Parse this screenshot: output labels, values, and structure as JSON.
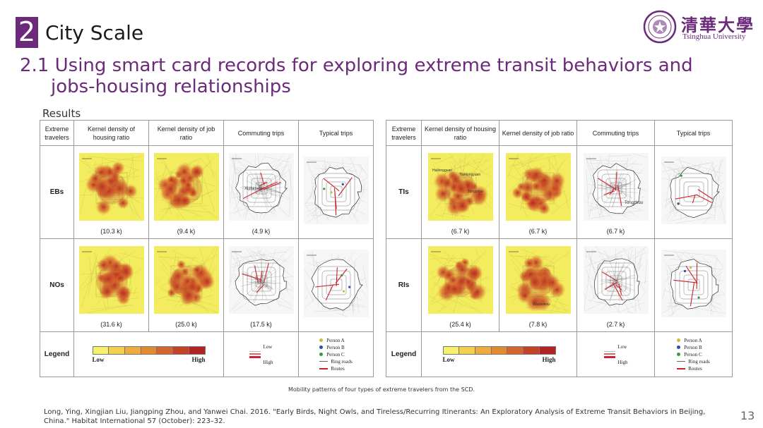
{
  "header": {
    "section_number": "2",
    "section_title": "City Scale",
    "subtitle_line1": "2.1 Using smart card records for exploring extreme transit behaviors and",
    "subtitle_line2": "jobs-housing relationships"
  },
  "logo": {
    "chinese_name": "清華大學",
    "english_name": "Tsinghua University",
    "accent_color": "#6b2b7a"
  },
  "results_label": "Results",
  "table_headers": [
    "Extreme travelers",
    "Kernel density of housing ratio",
    "Kernel density of job ratio",
    "Commuting trips",
    "Typical trips"
  ],
  "left_table": {
    "rows": [
      {
        "label": "EBs",
        "counts": [
          "(10.3 k)",
          "(9.4 k)",
          "(4.9 k)"
        ],
        "place_label": "Xizhimen"
      },
      {
        "label": "NOs",
        "counts": [
          "(31.6 k)",
          "(25.0 k)",
          "(17.5 k)"
        ],
        "place_label": ""
      }
    ]
  },
  "right_table": {
    "rows": [
      {
        "label": "TIs",
        "counts": [
          "(6.7 k)",
          "(6.7 k)",
          "(6.7 k)"
        ],
        "place_labels": [
          "Huilongguan",
          "Tiantongyuan",
          "Tongzhou"
        ],
        "place_label": "Tongzhou"
      },
      {
        "label": "RIs",
        "counts": [
          "(25.4 k)",
          "(7.8 k)",
          "(2.7 k)"
        ],
        "place_label": "Wudaokou"
      }
    ]
  },
  "legend": {
    "row_label": "Legend",
    "gradient_low": "Low",
    "gradient_high": "High",
    "gradient_colors": [
      "#f5ef6a",
      "#f3d04e",
      "#ecac3e",
      "#e08a34",
      "#d4652c",
      "#c44326",
      "#b32222"
    ],
    "line_low": "Low",
    "line_high": "High",
    "person_a": "Person A",
    "person_b": "Person B",
    "person_c": "Person C",
    "ring_roads": "Ring roads",
    "routes": "Routes",
    "person_colors": [
      "#c2c13a",
      "#2a4fa8",
      "#3a9a3a"
    ],
    "route_color": "#c8232a"
  },
  "caption": "Mobility patterns of four types of extreme travelers from the SCD.",
  "citation": "Long, Ying, Xingjian Liu, Jiangping Zhou, and Yanwei Chai. 2016. \"Early Birds, Night Owls, and Tireless/Recurring Itinerants: An Exploratory Analysis of Extreme Transit Behaviors in Beijing, China.\" Habitat International 57 (October): 223–32.",
  "page_number": "13"
}
